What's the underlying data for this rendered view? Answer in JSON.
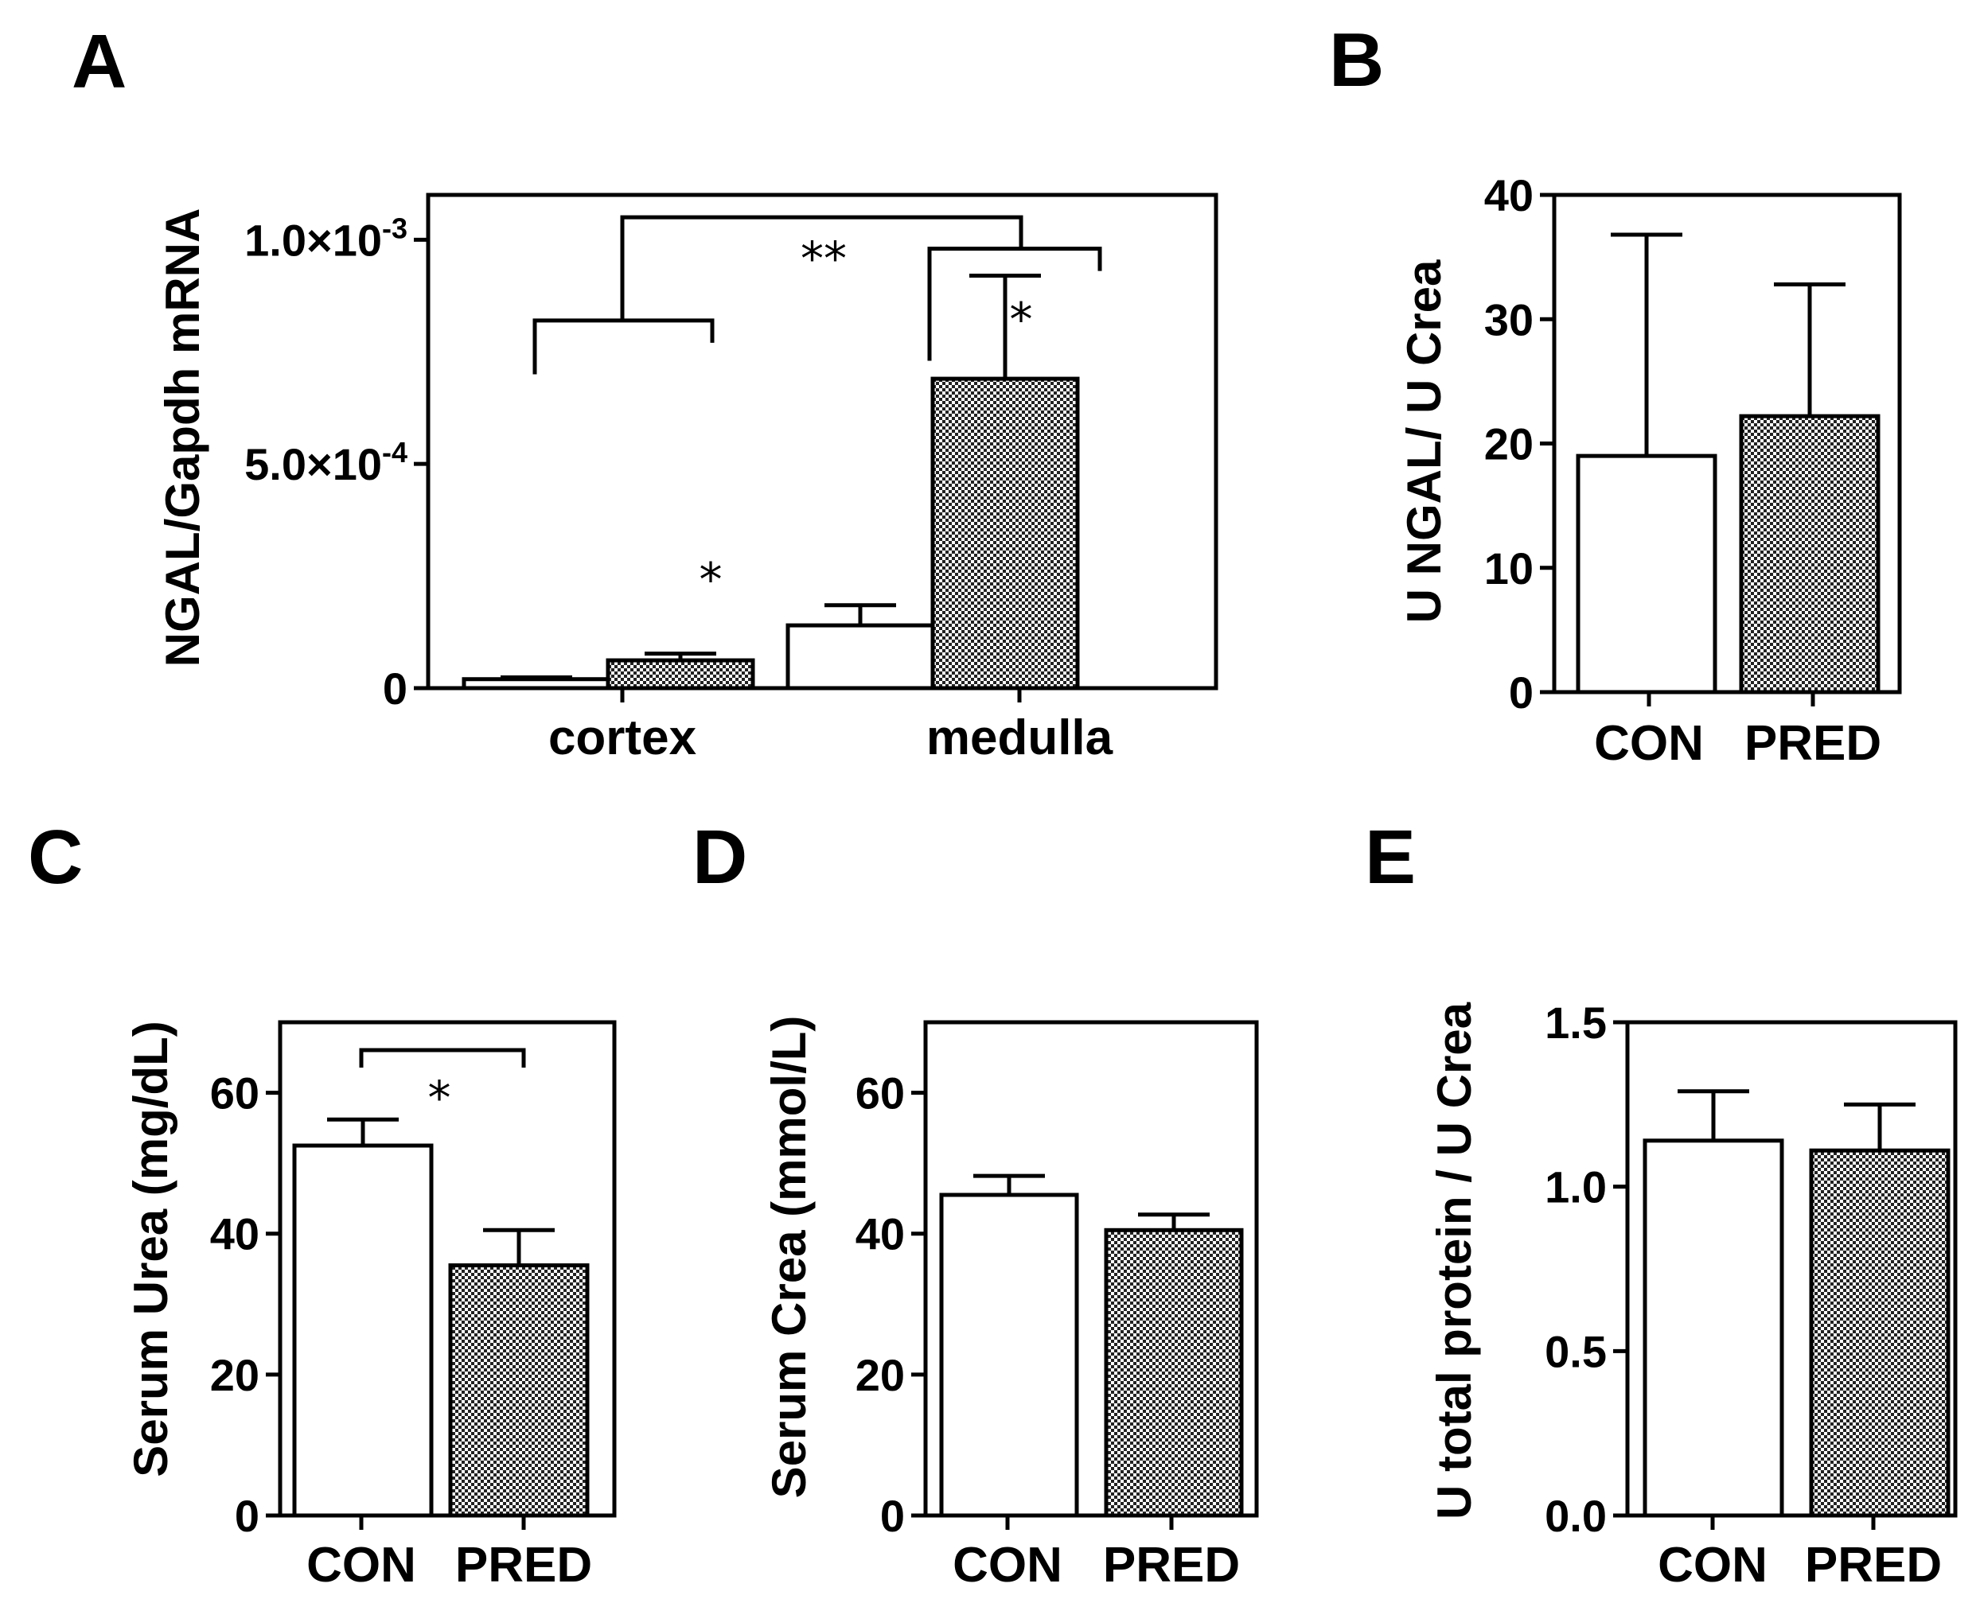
{
  "colors": {
    "line": "#000000",
    "con_fill": "#ffffff",
    "pred_fill": "#d8d8d8",
    "pattern_dark": "#222222"
  },
  "chart_data": [
    {
      "panel": "A",
      "type": "bar",
      "ylabel": "NGAL/Gapdh mRNA",
      "ylim": [
        0,
        0.0011
      ],
      "yticks": [
        {
          "value": 0,
          "mant": "0",
          "exp": ""
        },
        {
          "value": 0.0005,
          "mant": "5.0×10",
          "exp": "-4"
        },
        {
          "value": 0.001,
          "mant": "1.0×10",
          "exp": "-3"
        }
      ],
      "categories": [
        "cortex",
        "medulla"
      ],
      "series": [
        {
          "fill": "open",
          "values": [
            2e-05,
            0.00014
          ],
          "errors": [
            4e-06,
            4.5e-05
          ]
        },
        {
          "fill": "hatched",
          "values": [
            6.2e-05,
            0.00069
          ],
          "errors": [
            1.5e-05,
            0.00023
          ]
        }
      ],
      "annotations": [
        {
          "type": "bracket-group",
          "span": [
            "cortex",
            0,
            1
          ],
          "yval": 0.00082,
          "drop": 0.00012,
          "label": ""
        },
        {
          "type": "bracket-group",
          "span": [
            "medulla",
            0,
            1
          ],
          "yval": 0.00098,
          "drop": 0.00025,
          "label": ""
        },
        {
          "type": "bracket-link",
          "from": "cortex",
          "to": "medulla",
          "label": "**",
          "y_top": 0.00105
        },
        {
          "type": "star",
          "at": [
            "cortex",
            1
          ],
          "yval": 0.00026,
          "label": "*"
        },
        {
          "type": "star",
          "at": [
            "medulla",
            1
          ],
          "yval": 0.00084,
          "label": "*"
        }
      ]
    },
    {
      "panel": "B",
      "type": "bar",
      "ylabel": "U NGAL/ U Crea",
      "ylim": [
        0,
        40
      ],
      "yticks": [
        0,
        10,
        20,
        30,
        40
      ],
      "categories": [
        "CON",
        "PRED"
      ],
      "values": [
        19,
        22.2
      ],
      "errors": [
        17.8,
        10.6
      ]
    },
    {
      "panel": "C",
      "type": "bar",
      "ylabel": "Serum Urea (mg/dL)",
      "ylim": [
        0,
        70
      ],
      "yticks": [
        0,
        20,
        40,
        60
      ],
      "categories": [
        "CON",
        "PRED"
      ],
      "values": [
        52.5,
        35.5
      ],
      "errors": [
        3.7,
        5
      ],
      "annotations": [
        {
          "type": "bracket",
          "label": "*"
        }
      ]
    },
    {
      "panel": "D",
      "type": "bar",
      "ylabel": "Serum Crea (mmol/L)",
      "ylim": [
        0,
        70
      ],
      "yticks": [
        0,
        20,
        40,
        60
      ],
      "categories": [
        "CON",
        "PRED"
      ],
      "values": [
        45.5,
        40.5
      ],
      "errors": [
        2.7,
        2.2
      ]
    },
    {
      "panel": "E",
      "type": "bar",
      "ylabel": "U total protein / U Crea",
      "ylim": [
        0,
        1.5
      ],
      "yticks": [
        {
          "value": 0,
          "label": "0.0"
        },
        {
          "value": 0.5,
          "label": "0.5"
        },
        {
          "value": 1.0,
          "label": "1.0"
        },
        {
          "value": 1.5,
          "label": "1.5"
        }
      ],
      "categories": [
        "CON",
        "PRED"
      ],
      "values": [
        1.14,
        1.11
      ],
      "errors": [
        0.15,
        0.14
      ]
    }
  ]
}
